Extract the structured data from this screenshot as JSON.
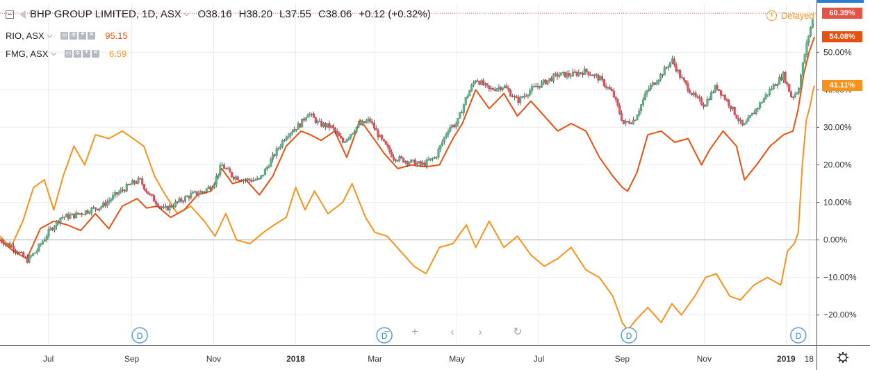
{
  "header": {
    "symbol": "BHP GROUP LIMITED, 1D, ASX",
    "open": "O38.16",
    "high": "H38.20",
    "low": "L37.55",
    "close": "C38.06",
    "change": "+0.12 (+0.32%)",
    "delayed": "Delayed"
  },
  "compare": [
    {
      "symbol": "RIO, ASX",
      "value": "95.15",
      "color": "#e8500f"
    },
    {
      "symbol": "FMG, ASX",
      "value": "6.59",
      "color": "#f7931a"
    }
  ],
  "scale_labels": [
    {
      "text": "60.39%",
      "value": 60.39,
      "color": "#e55347"
    },
    {
      "text": "54.08%",
      "value": 54.08,
      "color": "#e8500f"
    },
    {
      "text": "41.11%",
      "value": 41.11,
      "color": "#f7931a"
    }
  ],
  "event_marker_label": "D",
  "chart_data": {
    "type": "line",
    "title": "BHP GROUP LIMITED, 1D, ASX",
    "y_axis": {
      "scale": "percent",
      "ylim": [
        -28,
        63
      ],
      "ticks": [
        50,
        40,
        30,
        20,
        10,
        0,
        -10,
        -20
      ],
      "tick_labels": [
        "50.00%",
        "40.00%",
        "30.00%",
        "20.00%",
        "10.00%",
        "0.00%",
        "−10.00%",
        "−20.00%"
      ]
    },
    "x_axis": {
      "range": [
        "2017-05-26",
        "2019-01-22"
      ],
      "tick_labels": [
        {
          "label": "Jul",
          "date": "2017-07-01",
          "bold": false
        },
        {
          "label": "Sep",
          "date": "2017-09-01",
          "bold": false
        },
        {
          "label": "Nov",
          "date": "2017-11-01",
          "bold": false
        },
        {
          "label": "2018",
          "date": "2018-01-01",
          "bold": true
        },
        {
          "label": "Mar",
          "date": "2018-03-01",
          "bold": false
        },
        {
          "label": "May",
          "date": "2018-05-01",
          "bold": false
        },
        {
          "label": "Jul",
          "date": "2018-07-01",
          "bold": false
        },
        {
          "label": "Sep",
          "date": "2018-09-01",
          "bold": false
        },
        {
          "label": "Nov",
          "date": "2018-11-01",
          "bold": false
        },
        {
          "label": "2019",
          "date": "2019-01-01",
          "bold": true
        },
        {
          "label": "18",
          "date": "2019-01-18",
          "bold": false
        }
      ]
    },
    "grid": true,
    "zero_line": true,
    "dividend_markers": [
      "2017-09-07",
      "2018-03-08",
      "2018-09-06",
      "2019-01-10"
    ],
    "series": [
      {
        "name": "BHP GROUP LIMITED",
        "style": "candles",
        "up_color": "#53b987",
        "down_color": "#eb4d5c",
        "points": [
          [
            "2017-05-26",
            0
          ],
          [
            "2017-06-05",
            -2
          ],
          [
            "2017-06-15",
            -5.5
          ],
          [
            "2017-06-22",
            -3
          ],
          [
            "2017-07-01",
            2
          ],
          [
            "2017-07-10",
            6
          ],
          [
            "2017-07-20",
            6.5
          ],
          [
            "2017-08-01",
            8
          ],
          [
            "2017-08-10",
            9
          ],
          [
            "2017-08-20",
            12
          ],
          [
            "2017-09-01",
            15
          ],
          [
            "2017-09-07",
            16
          ],
          [
            "2017-09-14",
            12
          ],
          [
            "2017-09-25",
            8
          ],
          [
            "2017-10-05",
            10
          ],
          [
            "2017-10-15",
            12
          ],
          [
            "2017-10-25",
            13
          ],
          [
            "2017-11-01",
            15
          ],
          [
            "2017-11-07",
            20
          ],
          [
            "2017-11-15",
            17
          ],
          [
            "2017-11-25",
            16
          ],
          [
            "2017-12-05",
            16
          ],
          [
            "2017-12-15",
            22
          ],
          [
            "2017-12-25",
            28
          ],
          [
            "2018-01-05",
            31
          ],
          [
            "2018-01-10",
            34
          ],
          [
            "2018-01-18",
            31
          ],
          [
            "2018-01-28",
            30
          ],
          [
            "2018-02-05",
            26
          ],
          [
            "2018-02-15",
            30
          ],
          [
            "2018-02-25",
            32
          ],
          [
            "2018-03-05",
            27
          ],
          [
            "2018-03-15",
            22
          ],
          [
            "2018-03-25",
            21
          ],
          [
            "2018-04-05",
            20
          ],
          [
            "2018-04-15",
            22
          ],
          [
            "2018-04-25",
            30
          ],
          [
            "2018-05-01",
            31
          ],
          [
            "2018-05-08",
            38
          ],
          [
            "2018-05-15",
            43
          ],
          [
            "2018-05-25",
            40
          ],
          [
            "2018-06-05",
            41
          ],
          [
            "2018-06-15",
            37
          ],
          [
            "2018-06-25",
            40
          ],
          [
            "2018-07-05",
            42
          ],
          [
            "2018-07-15",
            44
          ],
          [
            "2018-07-25",
            44
          ],
          [
            "2018-08-05",
            45
          ],
          [
            "2018-08-15",
            43
          ],
          [
            "2018-08-25",
            39
          ],
          [
            "2018-09-02",
            31
          ],
          [
            "2018-09-10",
            32
          ],
          [
            "2018-09-20",
            40
          ],
          [
            "2018-09-30",
            44
          ],
          [
            "2018-10-08",
            48
          ],
          [
            "2018-10-15",
            43
          ],
          [
            "2018-10-25",
            38
          ],
          [
            "2018-11-01",
            36
          ],
          [
            "2018-11-10",
            41
          ],
          [
            "2018-11-20",
            36
          ],
          [
            "2018-11-30",
            30
          ],
          [
            "2018-12-10",
            35
          ],
          [
            "2018-12-20",
            40
          ],
          [
            "2018-12-30",
            44
          ],
          [
            "2019-01-05",
            38
          ],
          [
            "2019-01-10",
            40
          ],
          [
            "2019-01-14",
            48
          ],
          [
            "2019-01-18",
            55
          ],
          [
            "2019-01-22",
            60.39
          ]
        ]
      },
      {
        "name": "RIO, ASX",
        "style": "line",
        "color": "#e8500f",
        "points": [
          [
            "2017-05-26",
            0
          ],
          [
            "2017-06-05",
            -3
          ],
          [
            "2017-06-15",
            -5
          ],
          [
            "2017-06-25",
            3
          ],
          [
            "2017-07-05",
            5
          ],
          [
            "2017-07-15",
            4
          ],
          [
            "2017-07-25",
            2.5
          ],
          [
            "2017-08-05",
            7
          ],
          [
            "2017-08-15",
            3
          ],
          [
            "2017-08-25",
            9
          ],
          [
            "2017-09-05",
            11
          ],
          [
            "2017-09-12",
            8.5
          ],
          [
            "2017-09-20",
            9
          ],
          [
            "2017-09-30",
            6
          ],
          [
            "2017-10-10",
            8
          ],
          [
            "2017-10-20",
            12
          ],
          [
            "2017-10-30",
            13
          ],
          [
            "2017-11-07",
            19
          ],
          [
            "2017-11-15",
            15
          ],
          [
            "2017-11-25",
            16
          ],
          [
            "2017-12-05",
            12
          ],
          [
            "2017-12-15",
            17
          ],
          [
            "2017-12-25",
            25
          ],
          [
            "2018-01-05",
            29
          ],
          [
            "2018-01-12",
            28
          ],
          [
            "2018-01-20",
            26.5
          ],
          [
            "2018-01-30",
            29
          ],
          [
            "2018-02-08",
            22
          ],
          [
            "2018-02-18",
            32
          ],
          [
            "2018-02-28",
            27
          ],
          [
            "2018-03-08",
            23
          ],
          [
            "2018-03-18",
            19
          ],
          [
            "2018-03-28",
            20
          ],
          [
            "2018-04-08",
            19.5
          ],
          [
            "2018-04-18",
            20
          ],
          [
            "2018-04-28",
            27
          ],
          [
            "2018-05-05",
            31
          ],
          [
            "2018-05-15",
            40
          ],
          [
            "2018-05-25",
            35
          ],
          [
            "2018-06-05",
            39
          ],
          [
            "2018-06-15",
            33
          ],
          [
            "2018-06-25",
            37
          ],
          [
            "2018-07-05",
            33
          ],
          [
            "2018-07-15",
            29
          ],
          [
            "2018-07-25",
            31
          ],
          [
            "2018-08-05",
            29
          ],
          [
            "2018-08-15",
            22
          ],
          [
            "2018-08-25",
            17
          ],
          [
            "2018-09-01",
            14
          ],
          [
            "2018-09-05",
            13
          ],
          [
            "2018-09-12",
            18
          ],
          [
            "2018-09-20",
            28
          ],
          [
            "2018-09-30",
            29
          ],
          [
            "2018-10-10",
            26
          ],
          [
            "2018-10-20",
            27
          ],
          [
            "2018-10-30",
            20
          ],
          [
            "2018-11-05",
            24
          ],
          [
            "2018-11-15",
            29
          ],
          [
            "2018-11-25",
            25
          ],
          [
            "2018-12-01",
            16
          ],
          [
            "2018-12-10",
            20
          ],
          [
            "2018-12-20",
            25
          ],
          [
            "2018-12-30",
            28
          ],
          [
            "2019-01-06",
            29
          ],
          [
            "2019-01-10",
            35
          ],
          [
            "2019-01-14",
            44
          ],
          [
            "2019-01-18",
            50
          ],
          [
            "2019-01-22",
            54.08
          ]
        ]
      },
      {
        "name": "FMG, ASX",
        "style": "line",
        "color": "#f7931a",
        "points": [
          [
            "2017-05-26",
            1
          ],
          [
            "2017-06-03",
            -2
          ],
          [
            "2017-06-12",
            5
          ],
          [
            "2017-06-20",
            14
          ],
          [
            "2017-06-28",
            16
          ],
          [
            "2017-07-05",
            8
          ],
          [
            "2017-07-12",
            17
          ],
          [
            "2017-07-20",
            25
          ],
          [
            "2017-07-28",
            20
          ],
          [
            "2017-08-05",
            28
          ],
          [
            "2017-08-15",
            27
          ],
          [
            "2017-08-25",
            29
          ],
          [
            "2017-09-02",
            27
          ],
          [
            "2017-09-10",
            25
          ],
          [
            "2017-09-18",
            17
          ],
          [
            "2017-09-26",
            12
          ],
          [
            "2017-10-05",
            7
          ],
          [
            "2017-10-15",
            9
          ],
          [
            "2017-10-25",
            5
          ],
          [
            "2017-11-02",
            1
          ],
          [
            "2017-11-10",
            7
          ],
          [
            "2017-11-18",
            0
          ],
          [
            "2017-11-28",
            -1
          ],
          [
            "2017-12-08",
            2
          ],
          [
            "2017-12-16",
            4
          ],
          [
            "2017-12-25",
            6
          ],
          [
            "2018-01-01",
            14
          ],
          [
            "2018-01-08",
            8
          ],
          [
            "2018-01-15",
            13
          ],
          [
            "2018-01-25",
            7
          ],
          [
            "2018-02-05",
            10
          ],
          [
            "2018-02-12",
            15
          ],
          [
            "2018-02-22",
            6
          ],
          [
            "2018-03-01",
            2
          ],
          [
            "2018-03-10",
            1
          ],
          [
            "2018-03-20",
            -3
          ],
          [
            "2018-03-30",
            -7
          ],
          [
            "2018-04-08",
            -9
          ],
          [
            "2018-04-18",
            -2
          ],
          [
            "2018-04-28",
            -1
          ],
          [
            "2018-05-08",
            4
          ],
          [
            "2018-05-15",
            -2
          ],
          [
            "2018-05-25",
            5
          ],
          [
            "2018-06-05",
            -2
          ],
          [
            "2018-06-15",
            1
          ],
          [
            "2018-06-25",
            -4
          ],
          [
            "2018-07-05",
            -7
          ],
          [
            "2018-07-15",
            -5
          ],
          [
            "2018-07-25",
            -2
          ],
          [
            "2018-08-05",
            -8
          ],
          [
            "2018-08-15",
            -10
          ],
          [
            "2018-08-25",
            -15
          ],
          [
            "2018-09-01",
            -22
          ],
          [
            "2018-09-05",
            -24
          ],
          [
            "2018-09-12",
            -21
          ],
          [
            "2018-09-20",
            -18
          ],
          [
            "2018-09-30",
            -22
          ],
          [
            "2018-10-08",
            -17
          ],
          [
            "2018-10-15",
            -20
          ],
          [
            "2018-10-25",
            -15
          ],
          [
            "2018-11-02",
            -10
          ],
          [
            "2018-11-10",
            -9
          ],
          [
            "2018-11-20",
            -15
          ],
          [
            "2018-11-28",
            -16
          ],
          [
            "2018-12-08",
            -12
          ],
          [
            "2018-12-18",
            -10
          ],
          [
            "2018-12-28",
            -12
          ],
          [
            "2019-01-02",
            -3
          ],
          [
            "2019-01-07",
            -1
          ],
          [
            "2019-01-10",
            2
          ],
          [
            "2019-01-13",
            20
          ],
          [
            "2019-01-16",
            32
          ],
          [
            "2019-01-19",
            36
          ],
          [
            "2019-01-21",
            40
          ],
          [
            "2019-01-22",
            41.11
          ]
        ]
      }
    ]
  }
}
